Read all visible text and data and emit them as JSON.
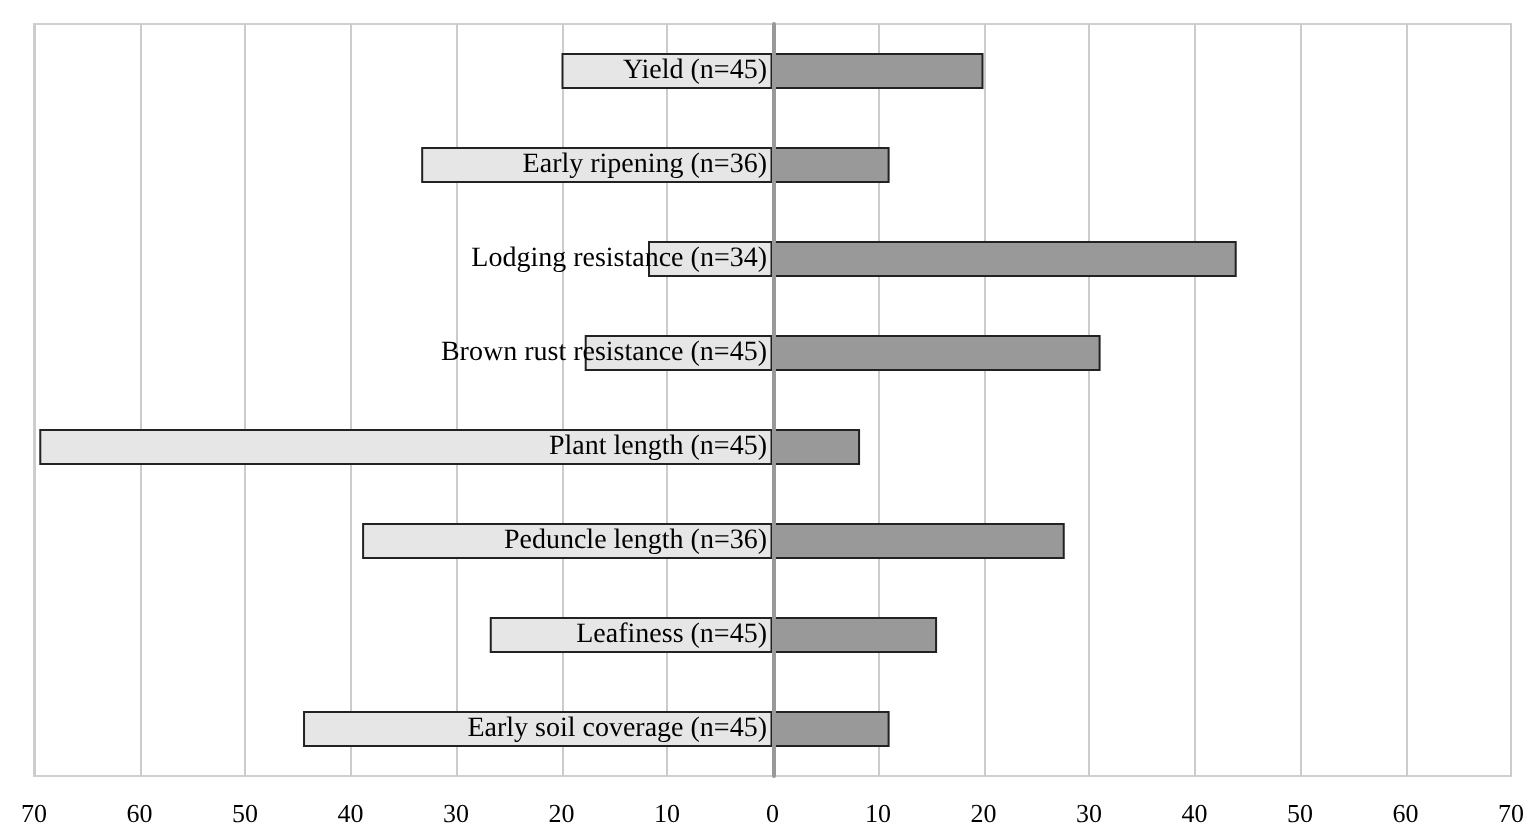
{
  "chart_data": {
    "type": "bar",
    "orientation": "horizontal",
    "stacked": true,
    "categories": [
      "Yield (n=45)",
      "Early ripening (n=36)",
      "Lodging resistance (n=34)",
      "Brown rust resistance (n=45)",
      "Plant length (n=45)",
      "Peduncle length (n=36)",
      "Leafiness (n=45)",
      "Early soil coverage (n=45)"
    ],
    "series": [
      {
        "color": "#e6e6e6",
        "values": [
          -20,
          -33.3,
          -11.8,
          -17.8,
          -69.5,
          -38.9,
          -26.8,
          -44.5
        ]
      },
      {
        "color": "#999999",
        "values": [
          20,
          11.1,
          44,
          31.1,
          8.3,
          27.7,
          15.6,
          11.1
        ]
      }
    ],
    "xlim": [
      -70,
      70
    ],
    "xticks": [
      {
        "value": -70,
        "label": "70"
      },
      {
        "value": -60,
        "label": "60"
      },
      {
        "value": -50,
        "label": "50"
      },
      {
        "value": -40,
        "label": "40"
      },
      {
        "value": -30,
        "label": "30"
      },
      {
        "value": -20,
        "label": "20"
      },
      {
        "value": -10,
        "label": "10"
      },
      0,
      10,
      20,
      30,
      40,
      50,
      60,
      70
    ],
    "grid": "x"
  }
}
